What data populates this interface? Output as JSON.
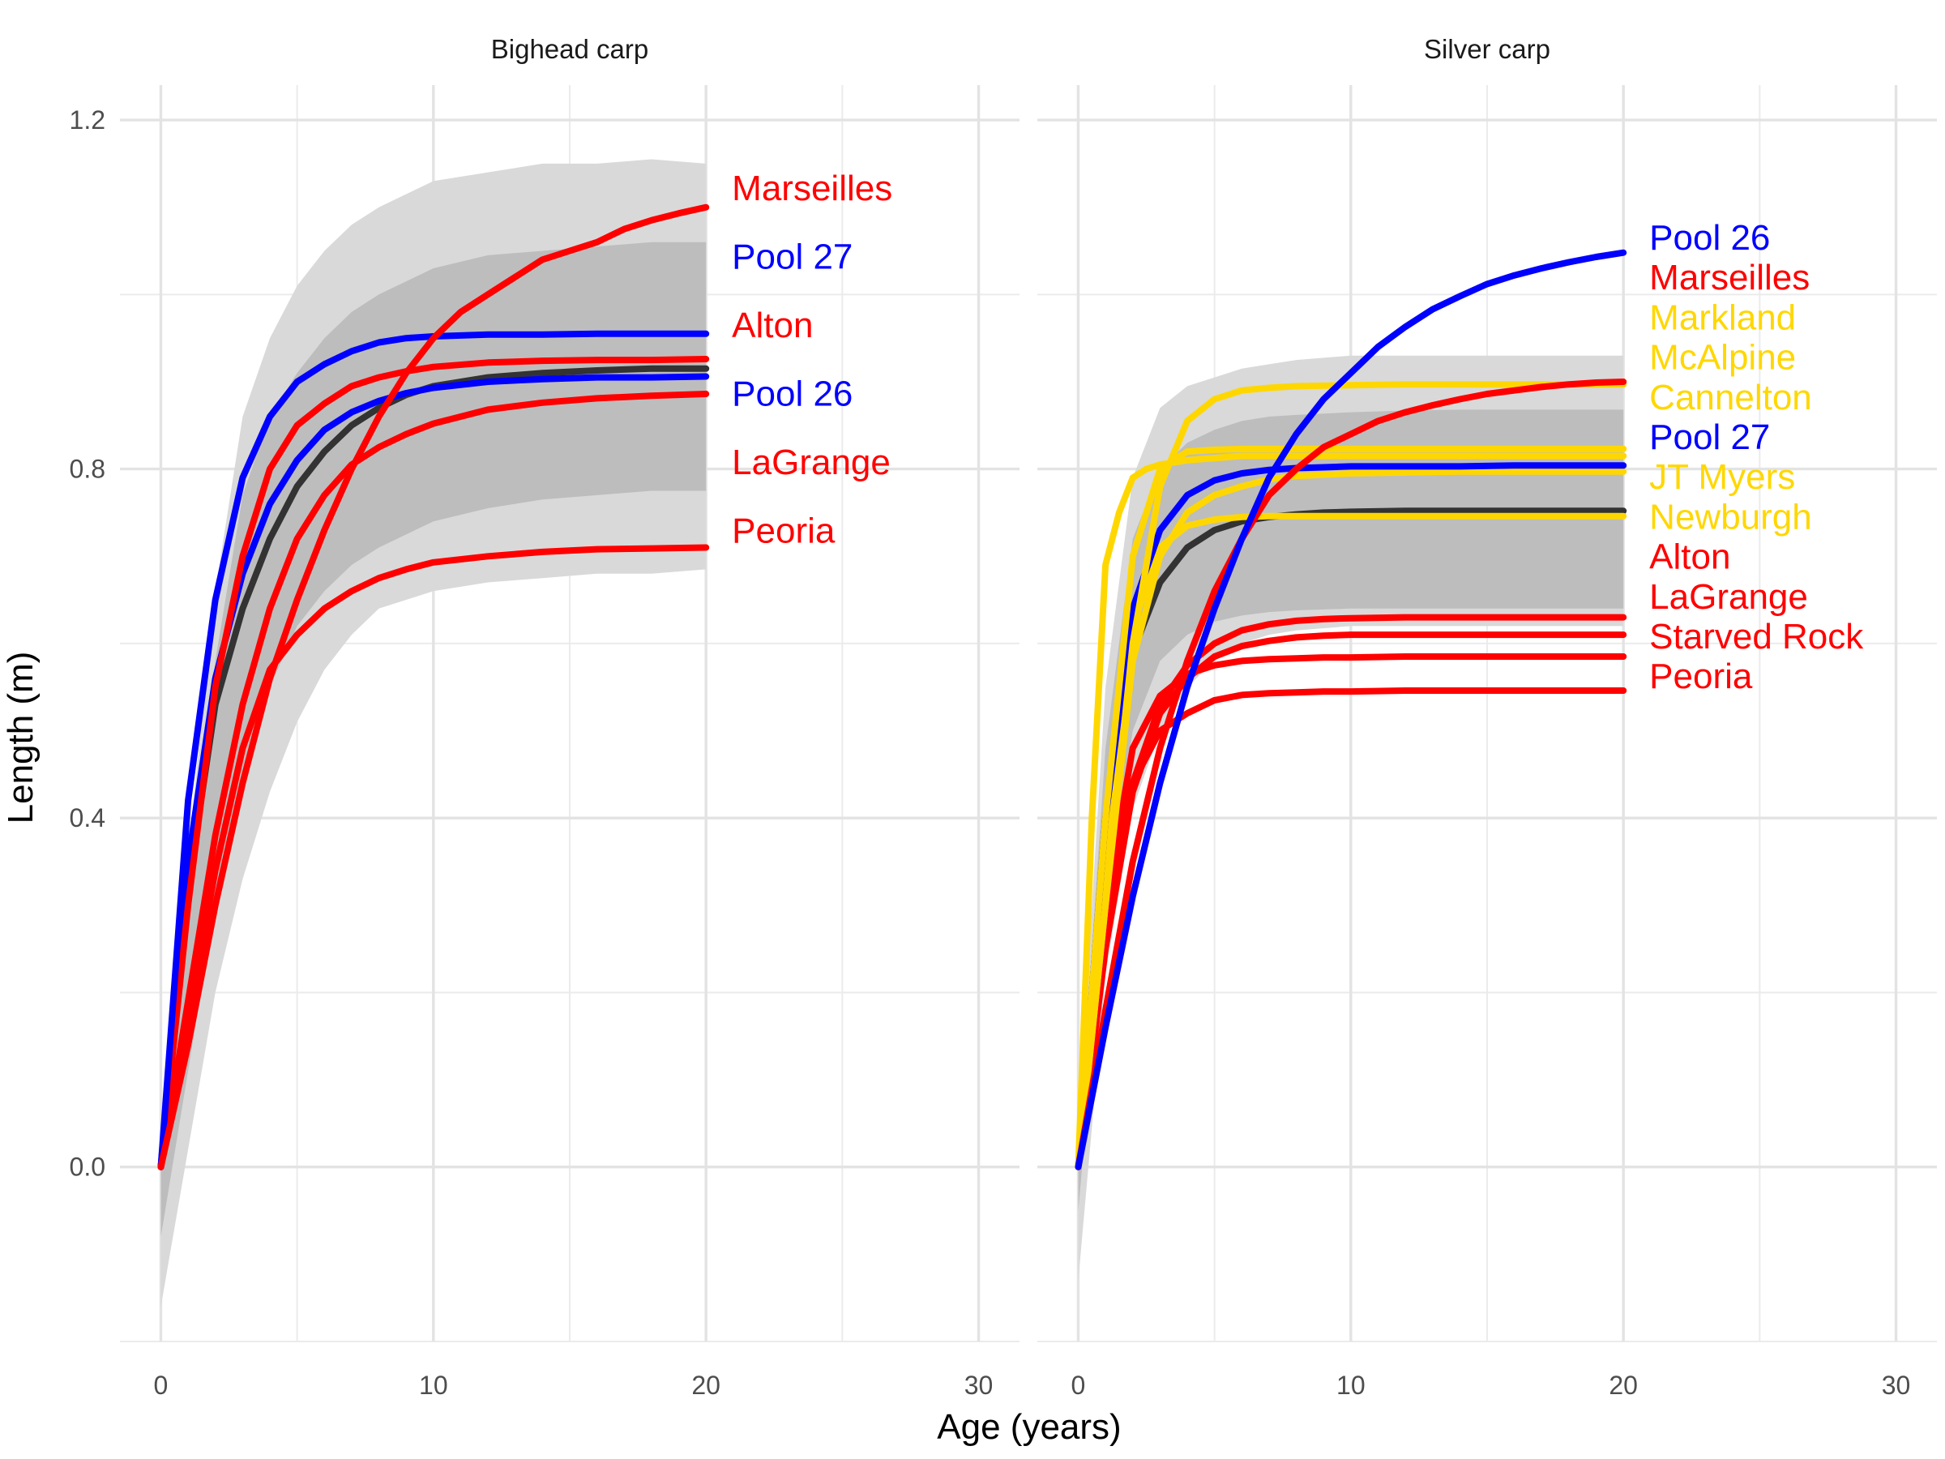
{
  "chart_data": {
    "type": "line",
    "xlabel": "Age (years)",
    "ylabel": "Length (m)",
    "xlim": [
      -1.5,
      31.5
    ],
    "ylim": [
      -0.2,
      1.24
    ],
    "x_ticks": [
      "0",
      "10",
      "20",
      "30"
    ],
    "y_ticks": [
      "0.0",
      "0.4",
      "0.8",
      "1.2"
    ],
    "grid": true,
    "colors": {
      "red": "#ff0000",
      "blue": "#0000ff",
      "gold": "#ffd700",
      "mean": "#333333",
      "band_outer": "#d9d9d9",
      "band_inner": "#bdbdbd"
    },
    "panels": [
      {
        "title": "Bighead carp",
        "band_outer": {
          "x": [
            0,
            2,
            3,
            4,
            5,
            6,
            7,
            8,
            10,
            12,
            14,
            16,
            18,
            20
          ],
          "upper": [
            0.06,
            0.66,
            0.86,
            0.95,
            1.01,
            1.05,
            1.08,
            1.1,
            1.13,
            1.14,
            1.15,
            1.15,
            1.155,
            1.15
          ],
          "lower": [
            -0.16,
            0.2,
            0.33,
            0.43,
            0.51,
            0.57,
            0.61,
            0.64,
            0.66,
            0.67,
            0.675,
            0.68,
            0.68,
            0.685
          ]
        },
        "band_inner": {
          "x": [
            0,
            2,
            3,
            4,
            5,
            6,
            7,
            8,
            10,
            12,
            14,
            16,
            18,
            20
          ],
          "upper": [
            0.03,
            0.58,
            0.77,
            0.86,
            0.91,
            0.95,
            0.98,
            1.0,
            1.03,
            1.045,
            1.05,
            1.055,
            1.06,
            1.06
          ],
          "lower": [
            -0.08,
            0.3,
            0.45,
            0.55,
            0.62,
            0.66,
            0.69,
            0.71,
            0.74,
            0.755,
            0.765,
            0.77,
            0.775,
            0.775
          ]
        },
        "mean": {
          "x": [
            0,
            1,
            2,
            3,
            4,
            5,
            6,
            7,
            8,
            9,
            10,
            12,
            14,
            16,
            18,
            20
          ],
          "y": [
            0,
            0.32,
            0.53,
            0.64,
            0.72,
            0.78,
            0.82,
            0.85,
            0.87,
            0.885,
            0.895,
            0.905,
            0.91,
            0.913,
            0.915,
            0.915
          ]
        },
        "series": [
          {
            "name": "Marseilles",
            "color": "#ff0000",
            "x": [
              0,
              1,
              2,
              3,
              4,
              5,
              6,
              7,
              8,
              9,
              10,
              11,
              12,
              13,
              14,
              15,
              16,
              17,
              18,
              19,
              20
            ],
            "y": [
              0,
              0.14,
              0.3,
              0.44,
              0.56,
              0.65,
              0.73,
              0.8,
              0.86,
              0.91,
              0.95,
              0.98,
              1.0,
              1.02,
              1.04,
              1.05,
              1.06,
              1.075,
              1.085,
              1.093,
              1.1
            ]
          },
          {
            "name": "Pool 27",
            "color": "#0000ff",
            "x": [
              0,
              1,
              2,
              3,
              4,
              5,
              6,
              7,
              8,
              9,
              10,
              12,
              14,
              16,
              18,
              20
            ],
            "y": [
              0,
              0.42,
              0.65,
              0.79,
              0.86,
              0.9,
              0.92,
              0.935,
              0.945,
              0.95,
              0.952,
              0.954,
              0.954,
              0.955,
              0.955,
              0.955
            ]
          },
          {
            "name": "Alton",
            "color": "#ff0000",
            "x": [
              0,
              1,
              2,
              3,
              4,
              5,
              6,
              7,
              8,
              9,
              10,
              12,
              14,
              16,
              18,
              20
            ],
            "y": [
              0,
              0.3,
              0.55,
              0.7,
              0.8,
              0.85,
              0.875,
              0.895,
              0.905,
              0.912,
              0.917,
              0.922,
              0.924,
              0.925,
              0.925,
              0.926
            ]
          },
          {
            "name": "Pool 26",
            "color": "#0000ff",
            "x": [
              0,
              1,
              2,
              3,
              4,
              5,
              6,
              7,
              8,
              9,
              10,
              12,
              14,
              16,
              18,
              20
            ],
            "y": [
              0,
              0.35,
              0.56,
              0.68,
              0.76,
              0.81,
              0.845,
              0.865,
              0.878,
              0.887,
              0.893,
              0.9,
              0.903,
              0.905,
              0.905,
              0.906
            ]
          },
          {
            "name": "LaGrange",
            "color": "#ff0000",
            "x": [
              0,
              1,
              2,
              3,
              4,
              5,
              6,
              7,
              8,
              9,
              10,
              12,
              14,
              16,
              18,
              20
            ],
            "y": [
              0,
              0.19,
              0.38,
              0.53,
              0.64,
              0.72,
              0.77,
              0.805,
              0.825,
              0.84,
              0.852,
              0.868,
              0.876,
              0.881,
              0.884,
              0.886
            ]
          },
          {
            "name": "Peoria",
            "color": "#ff0000",
            "x": [
              0,
              1,
              2,
              3,
              4,
              5,
              6,
              7,
              8,
              9,
              10,
              12,
              14,
              16,
              18,
              20
            ],
            "y": [
              0,
              0.17,
              0.34,
              0.48,
              0.57,
              0.61,
              0.64,
              0.66,
              0.675,
              0.685,
              0.693,
              0.7,
              0.705,
              0.708,
              0.709,
              0.71
            ]
          }
        ]
      },
      {
        "title": "Silver carp",
        "band_outer": {
          "x": [
            0,
            1,
            2,
            3,
            4,
            5,
            6,
            7,
            8,
            10,
            12,
            14,
            16,
            18,
            20
          ],
          "upper": [
            0.05,
            0.55,
            0.79,
            0.87,
            0.895,
            0.905,
            0.915,
            0.92,
            0.925,
            0.93,
            0.93,
            0.93,
            0.93,
            0.93,
            0.93
          ],
          "lower": [
            -0.13,
            0.22,
            0.41,
            0.5,
            0.55,
            0.58,
            0.6,
            0.61,
            0.615,
            0.62,
            0.62,
            0.62,
            0.62,
            0.62,
            0.62
          ]
        },
        "band_inner": {
          "x": [
            0,
            1,
            2,
            3,
            4,
            5,
            6,
            7,
            8,
            10,
            12,
            14,
            16,
            18,
            20
          ],
          "upper": [
            0.02,
            0.48,
            0.72,
            0.8,
            0.83,
            0.845,
            0.855,
            0.86,
            0.862,
            0.865,
            0.867,
            0.868,
            0.868,
            0.868,
            0.868
          ],
          "lower": [
            -0.05,
            0.3,
            0.5,
            0.58,
            0.61,
            0.625,
            0.632,
            0.636,
            0.638,
            0.64,
            0.64,
            0.64,
            0.64,
            0.64,
            0.64
          ]
        },
        "mean": {
          "x": [
            0,
            1,
            2,
            3,
            4,
            5,
            6,
            7,
            8,
            9,
            10,
            12,
            14,
            16,
            18,
            20
          ],
          "y": [
            0,
            0.38,
            0.59,
            0.67,
            0.71,
            0.73,
            0.74,
            0.745,
            0.748,
            0.75,
            0.751,
            0.752,
            0.752,
            0.752,
            0.752,
            0.752
          ]
        },
        "series": [
          {
            "name": "Pool 26",
            "color": "#0000ff",
            "x": [
              0,
              1,
              2,
              3,
              4,
              5,
              6,
              7,
              8,
              9,
              10,
              11,
              12,
              13,
              14,
              15,
              16,
              17,
              18,
              19,
              20
            ],
            "y": [
              0,
              0.16,
              0.31,
              0.44,
              0.55,
              0.64,
              0.72,
              0.79,
              0.84,
              0.88,
              0.91,
              0.94,
              0.963,
              0.983,
              0.998,
              1.012,
              1.022,
              1.03,
              1.037,
              1.043,
              1.048
            ]
          },
          {
            "name": "Marseilles",
            "color": "#ff0000",
            "x": [
              0,
              1,
              2,
              3,
              4,
              5,
              6,
              7,
              8,
              9,
              10,
              11,
              12,
              13,
              14,
              15,
              16,
              17,
              18,
              19,
              20
            ],
            "y": [
              0,
              0.18,
              0.35,
              0.48,
              0.58,
              0.66,
              0.72,
              0.77,
              0.8,
              0.825,
              0.84,
              0.855,
              0.865,
              0.873,
              0.88,
              0.886,
              0.89,
              0.894,
              0.897,
              0.899,
              0.9
            ]
          },
          {
            "name": "Markland",
            "color": "#ffd700",
            "x": [
              0,
              1,
              2,
              3,
              4,
              5,
              6,
              7,
              8,
              10,
              12,
              14,
              16,
              18,
              20
            ],
            "y": [
              0,
              0.3,
              0.6,
              0.78,
              0.855,
              0.88,
              0.89,
              0.893,
              0.895,
              0.896,
              0.897,
              0.897,
              0.897,
              0.897,
              0.897
            ]
          },
          {
            "name": "McAlpine",
            "color": "#ffd700",
            "x": [
              0,
              0.5,
              1,
              1.5,
              2,
              2.5,
              3,
              4,
              6,
              8,
              10,
              12,
              14,
              16,
              18,
              20
            ],
            "y": [
              0,
              0.4,
              0.69,
              0.75,
              0.79,
              0.8,
              0.805,
              0.81,
              0.815,
              0.815,
              0.815,
              0.815,
              0.815,
              0.815,
              0.815,
              0.815
            ]
          },
          {
            "name": "Cannelton",
            "color": "#ffd700",
            "x": [
              0,
              1,
              2,
              3,
              4,
              5,
              6,
              7,
              8,
              10,
              12,
              14,
              16,
              18,
              20
            ],
            "y": [
              0,
              0.4,
              0.7,
              0.8,
              0.82,
              0.822,
              0.823,
              0.823,
              0.823,
              0.823,
              0.823,
              0.823,
              0.823,
              0.823,
              0.823
            ]
          },
          {
            "name": "Pool 27",
            "color": "#0000ff",
            "x": [
              0,
              1,
              2,
              3,
              4,
              5,
              6,
              7,
              8,
              9,
              10,
              12,
              14,
              16,
              18,
              20
            ],
            "y": [
              0,
              0.4,
              0.64,
              0.73,
              0.77,
              0.787,
              0.795,
              0.799,
              0.801,
              0.802,
              0.803,
              0.803,
              0.803,
              0.804,
              0.804,
              0.804
            ]
          },
          {
            "name": "JT Myers",
            "color": "#ffd700",
            "x": [
              0,
              1,
              2,
              3,
              4,
              5,
              6,
              7,
              8,
              10,
              12,
              14,
              16,
              18,
              20
            ],
            "y": [
              0,
              0.3,
              0.58,
              0.7,
              0.75,
              0.77,
              0.78,
              0.788,
              0.792,
              0.795,
              0.796,
              0.797,
              0.797,
              0.797,
              0.797
            ]
          },
          {
            "name": "Newburgh",
            "color": "#ffd700",
            "x": [
              0,
              1,
              2,
              3,
              4,
              5,
              6,
              7,
              8,
              10,
              12,
              14,
              16,
              18,
              20
            ],
            "y": [
              0,
              0.35,
              0.62,
              0.71,
              0.735,
              0.742,
              0.745,
              0.746,
              0.746,
              0.746,
              0.746,
              0.746,
              0.746,
              0.746,
              0.746
            ]
          },
          {
            "name": "Alton",
            "color": "#ff0000",
            "x": [
              0,
              1,
              2,
              3,
              4,
              5,
              6,
              7,
              8,
              9,
              10,
              12,
              14,
              16,
              18,
              20
            ],
            "y": [
              0,
              0.26,
              0.44,
              0.53,
              0.575,
              0.6,
              0.615,
              0.622,
              0.626,
              0.628,
              0.629,
              0.63,
              0.63,
              0.63,
              0.63,
              0.63
            ]
          },
          {
            "name": "LaGrange",
            "color": "#ff0000",
            "x": [
              0,
              1,
              2,
              3,
              4,
              5,
              6,
              7,
              8,
              9,
              10,
              12,
              14,
              16,
              18,
              20
            ],
            "y": [
              0,
              0.25,
              0.43,
              0.52,
              0.56,
              0.585,
              0.597,
              0.603,
              0.607,
              0.609,
              0.61,
              0.61,
              0.61,
              0.61,
              0.61,
              0.61
            ]
          },
          {
            "name": "Starved Rock",
            "color": "#ff0000",
            "x": [
              0,
              1,
              2,
              3,
              4,
              5,
              6,
              7,
              8,
              9,
              10,
              12,
              14,
              16,
              18,
              20
            ],
            "y": [
              0,
              0.3,
              0.48,
              0.54,
              0.565,
              0.575,
              0.58,
              0.582,
              0.583,
              0.584,
              0.584,
              0.585,
              0.585,
              0.585,
              0.585,
              0.585
            ]
          },
          {
            "name": "Peoria",
            "color": "#ff0000",
            "x": [
              0,
              1,
              2,
              3,
              4,
              5,
              6,
              7,
              8,
              9,
              10,
              12,
              14,
              16,
              18,
              20
            ],
            "y": [
              0,
              0.28,
              0.44,
              0.5,
              0.52,
              0.535,
              0.541,
              0.543,
              0.544,
              0.545,
              0.545,
              0.546,
              0.546,
              0.546,
              0.546,
              0.546
            ]
          }
        ]
      }
    ]
  }
}
